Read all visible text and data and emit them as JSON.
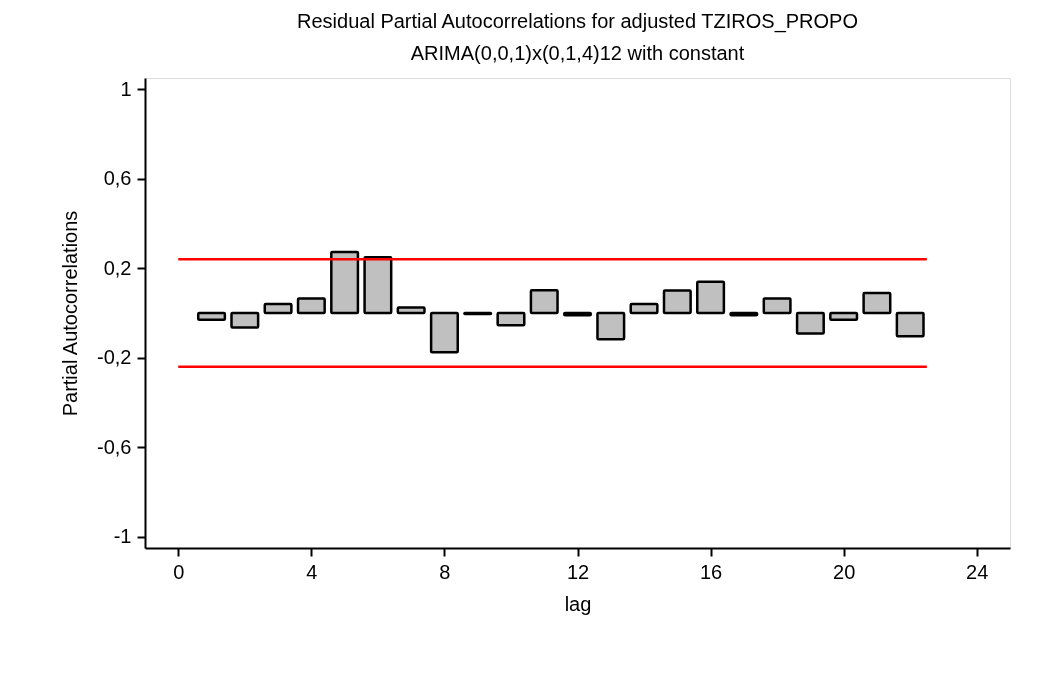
{
  "chart_data": {
    "type": "bar",
    "title": "Residual Partial Autocorrelations for adjusted TZIROS_PROPO",
    "subtitle": "ARIMA(0,0,1)x(0,1,4)12 with constant",
    "xlabel": "lag",
    "ylabel": "Partial Autocorrelations",
    "x": [
      1,
      2,
      3,
      4,
      5,
      6,
      7,
      8,
      9,
      10,
      11,
      12,
      13,
      14,
      15,
      16,
      17,
      18,
      19,
      20,
      21,
      22
    ],
    "series": [
      {
        "color": "#c0c0c0",
        "values": [
          -0.03,
          -0.065,
          0.04,
          0.065,
          0.273,
          0.249,
          0.025,
          -0.175,
          -0.005,
          -0.055,
          0.102,
          -0.01,
          -0.117,
          0.04,
          0.1,
          0.14,
          -0.01,
          0.065,
          -0.092,
          -0.03,
          0.089,
          -0.104
        ]
      }
    ],
    "xlim": [
      -1,
      25
    ],
    "xticks": [
      0,
      4,
      8,
      12,
      16,
      20,
      24
    ],
    "ylim": [
      -1.05,
      1.05
    ],
    "yticks": [
      {
        "value": -1,
        "label": "-1"
      },
      {
        "value": -0.6,
        "label": "-0,6"
      },
      {
        "value": -0.2,
        "label": "-0,2"
      },
      {
        "value": 0.2,
        "label": "0,2"
      },
      {
        "value": 0.6,
        "label": "0,6"
      },
      {
        "value": 1,
        "label": "1"
      }
    ],
    "ref_lines": [
      {
        "axis": "y",
        "value": 0.24,
        "color": "#ff0000"
      },
      {
        "axis": "y",
        "value": -0.24,
        "color": "#ff0000"
      }
    ],
    "grid": false
  }
}
